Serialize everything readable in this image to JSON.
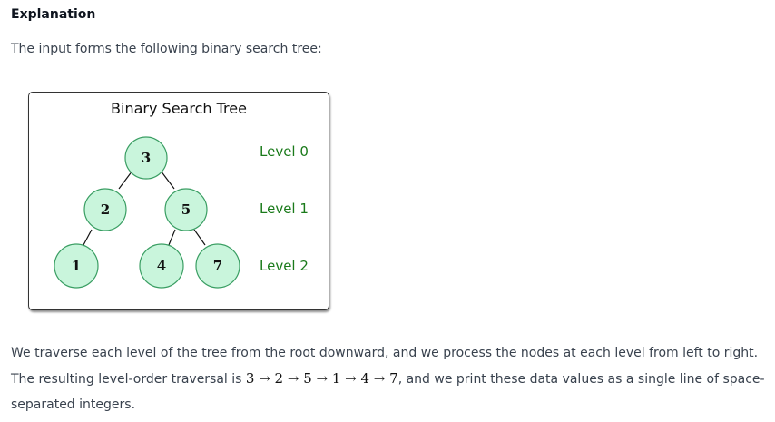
{
  "explanation": {
    "heading": "Explanation",
    "intro": "The input forms the following binary search tree:"
  },
  "figure": {
    "title": "Binary Search Tree",
    "nodes": [
      "3",
      "2",
      "5",
      "1",
      "4",
      "7"
    ],
    "levels": [
      "Level 0",
      "Level 1",
      "Level 2"
    ]
  },
  "traversal": {
    "text_before": "We traverse each level of the tree from the root downward, and we process the nodes at each level from left to right. The resulting level-order traversal is ",
    "sequence": "3 → 2 → 5 → 1 → 4 → 7",
    "text_after": ", and we print these data values as a single line of space-separated integers."
  },
  "colors": {
    "node_fill": "#c9f5dc",
    "node_stroke": "#3a9e63",
    "level_text": "#1a7a1a"
  }
}
